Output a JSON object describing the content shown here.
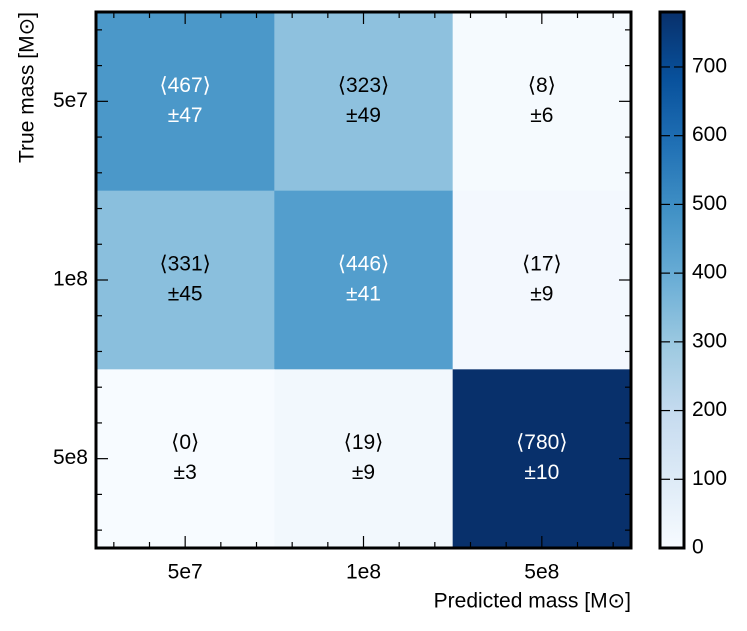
{
  "chart_data": {
    "type": "heatmap",
    "x_label": "Predicted mass [M⊙]",
    "y_label": "True mass [M⊙]",
    "x_categories": [
      "5e7",
      "1e8",
      "5e8"
    ],
    "y_categories": [
      "5e7",
      "1e8",
      "5e8"
    ],
    "values": [
      [
        467,
        323,
        8
      ],
      [
        331,
        446,
        17
      ],
      [
        0,
        19,
        780
      ]
    ],
    "value_labels": [
      [
        "⟨467⟩",
        "⟨323⟩",
        "⟨8⟩"
      ],
      [
        "⟨331⟩",
        "⟨446⟩",
        "⟨17⟩"
      ],
      [
        "⟨0⟩",
        "⟨19⟩",
        "⟨780⟩"
      ]
    ],
    "errors": [
      [
        47,
        49,
        6
      ],
      [
        45,
        41,
        9
      ],
      [
        3,
        9,
        10
      ]
    ],
    "error_labels": [
      [
        "±47",
        "±49",
        "±6"
      ],
      [
        "±45",
        "±41",
        "±9"
      ],
      [
        "±3",
        "±9",
        "±10"
      ]
    ],
    "colormap": "Blues",
    "zlim": [
      0,
      780
    ],
    "zticks": [
      0,
      100,
      200,
      300,
      400,
      500,
      600,
      700
    ]
  }
}
